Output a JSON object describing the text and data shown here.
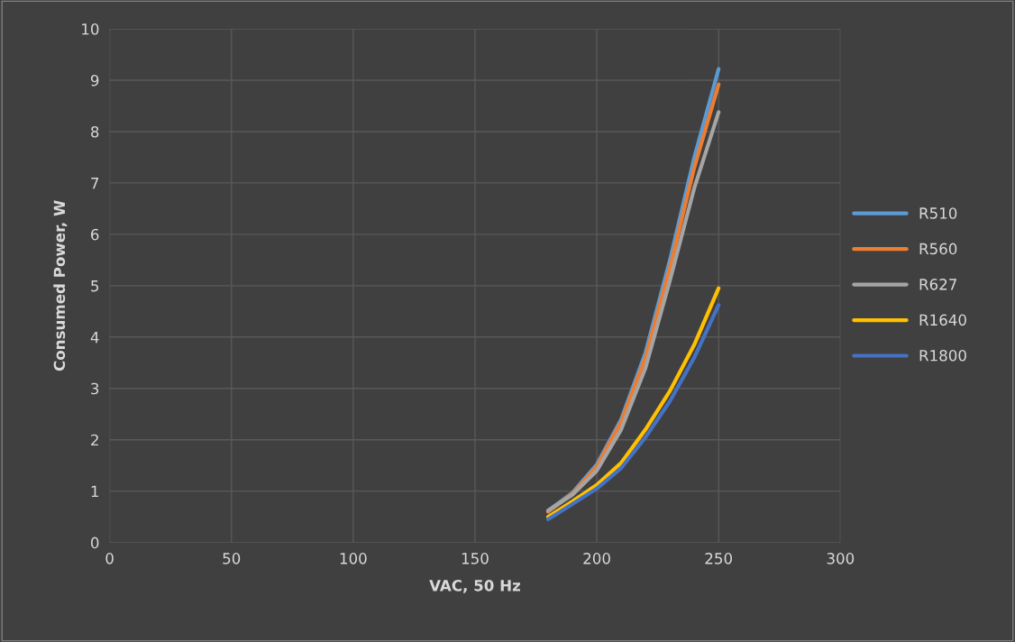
{
  "chart_data": {
    "type": "line",
    "xlabel": "VAC, 50 Hz",
    "ylabel": "Consumed Power, W",
    "x": [
      180,
      190,
      200,
      210,
      220,
      230,
      240,
      250
    ],
    "xlim": [
      0,
      300
    ],
    "xticks": [
      0,
      50,
      100,
      150,
      200,
      250,
      300
    ],
    "ylim": [
      0,
      10
    ],
    "yticks": [
      0,
      1,
      2,
      3,
      4,
      5,
      6,
      7,
      8,
      9,
      10
    ],
    "grid": true,
    "legend": "right",
    "marker": "none",
    "line_style": "solid",
    "series": [
      {
        "name": "R510",
        "color": "#5b9bd5",
        "values": [
          0.62,
          0.97,
          1.52,
          2.4,
          3.7,
          5.5,
          7.5,
          9.22
        ]
      },
      {
        "name": "R560",
        "color": "#ed7d31",
        "values": [
          0.6,
          0.95,
          1.48,
          2.35,
          3.6,
          5.35,
          7.3,
          8.92
        ]
      },
      {
        "name": "R627",
        "color": "#a5a5a5",
        "values": [
          0.62,
          0.93,
          1.4,
          2.2,
          3.4,
          5.1,
          6.9,
          8.38
        ]
      },
      {
        "name": "R1640",
        "color": "#ffc000",
        "values": [
          0.5,
          0.8,
          1.12,
          1.55,
          2.2,
          2.95,
          3.85,
          4.95
        ]
      },
      {
        "name": "R1800",
        "color": "#4472c4",
        "values": [
          0.45,
          0.75,
          1.05,
          1.45,
          2.05,
          2.75,
          3.6,
          4.62
        ]
      }
    ]
  }
}
